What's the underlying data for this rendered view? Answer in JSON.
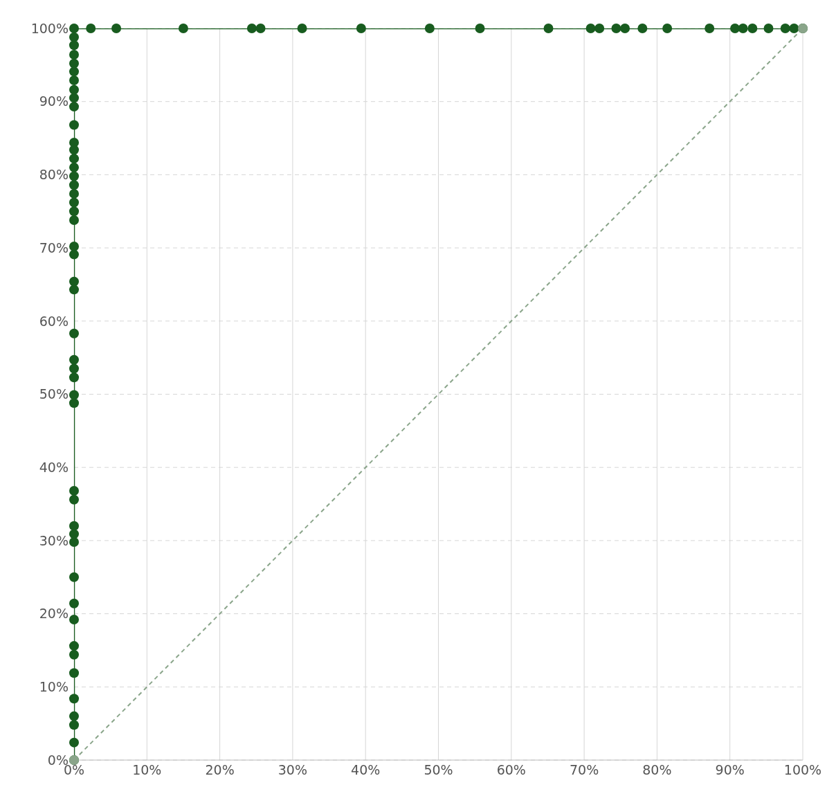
{
  "chart_data": {
    "type": "line",
    "xlim": [
      0,
      100
    ],
    "ylim": [
      0,
      100
    ],
    "xticks": [
      {
        "value": 0,
        "label": "0%"
      },
      {
        "value": 10,
        "label": "10%"
      },
      {
        "value": 20,
        "label": "20%"
      },
      {
        "value": 30,
        "label": "30%"
      },
      {
        "value": 40,
        "label": "40%"
      },
      {
        "value": 50,
        "label": "50%"
      },
      {
        "value": 60,
        "label": "60%"
      },
      {
        "value": 70,
        "label": "70%"
      },
      {
        "value": 80,
        "label": "80%"
      },
      {
        "value": 90,
        "label": "90%"
      },
      {
        "value": 100,
        "label": "100%"
      }
    ],
    "yticks": [
      {
        "value": 0,
        "label": "0%"
      },
      {
        "value": 10,
        "label": "10%"
      },
      {
        "value": 20,
        "label": "20%"
      },
      {
        "value": 30,
        "label": "30%"
      },
      {
        "value": 40,
        "label": "40%"
      },
      {
        "value": 50,
        "label": "50%"
      },
      {
        "value": 60,
        "label": "60%"
      },
      {
        "value": 70,
        "label": "70%"
      },
      {
        "value": 80,
        "label": "80%"
      },
      {
        "value": 90,
        "label": "90%"
      },
      {
        "value": 100,
        "label": "100%"
      }
    ],
    "grid": true,
    "marker": "circle",
    "series": [
      {
        "color": "#185c1f",
        "line_style": "solid",
        "x": [
          0,
          0,
          0,
          0,
          0,
          0,
          0,
          0,
          0,
          0,
          0,
          0,
          0,
          0,
          0,
          0,
          0,
          0,
          0,
          0,
          0,
          0,
          0,
          0,
          0,
          0,
          0,
          0,
          0,
          0,
          0,
          0,
          0,
          0,
          0,
          0,
          0,
          0,
          0,
          0,
          0,
          0,
          0,
          0,
          0,
          0,
          0,
          2.3,
          5.8,
          15.0,
          24.4,
          25.6,
          31.3,
          39.4,
          48.8,
          55.7,
          65.1,
          70.9,
          72.1,
          74.4,
          75.6,
          78.0,
          81.4,
          87.2,
          90.7,
          91.8,
          93.1,
          95.3,
          97.6,
          98.8,
          100
        ],
        "values": [
          0,
          2.4,
          4.8,
          6.0,
          8.4,
          11.9,
          14.4,
          15.6,
          19.2,
          21.4,
          25.0,
          29.8,
          30.9,
          32.0,
          35.6,
          36.8,
          48.8,
          49.9,
          52.3,
          53.5,
          54.7,
          58.3,
          64.3,
          65.4,
          69.1,
          70.2,
          73.8,
          75.0,
          76.2,
          77.4,
          78.6,
          79.8,
          81.0,
          82.2,
          83.4,
          84.4,
          86.8,
          89.3,
          90.5,
          91.6,
          92.9,
          94.1,
          95.2,
          96.4,
          97.7,
          98.8,
          100,
          100,
          100,
          100,
          100,
          100,
          100,
          100,
          100,
          100,
          100,
          100,
          100,
          100,
          100,
          100,
          100,
          100,
          100,
          100,
          100,
          100,
          100,
          100,
          100
        ]
      },
      {
        "color": "#8aa58a",
        "line_style": "dashed",
        "x": [
          0,
          100
        ],
        "values": [
          0,
          100
        ]
      }
    ]
  }
}
